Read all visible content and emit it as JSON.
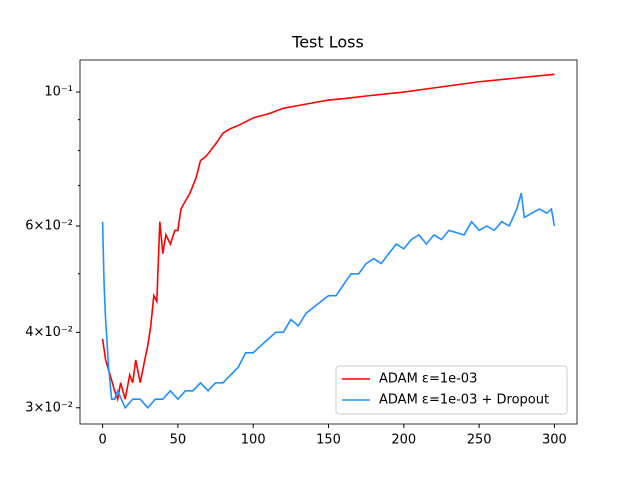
{
  "chart_data": {
    "type": "line",
    "title": "Test Loss",
    "log_y": true,
    "legend": "lower right",
    "xlim": [
      -15,
      315
    ],
    "xticks": [
      0,
      50,
      100,
      150,
      200,
      250,
      300
    ],
    "ylim": [
      0.0282,
      0.113
    ],
    "yticks": [
      {
        "value": 0.03,
        "label": "3×10⁻²"
      },
      {
        "value": 0.04,
        "label": "4×10⁻²"
      },
      {
        "value": 0.06,
        "label": "6×10⁻²"
      },
      {
        "value": 0.1,
        "label": "10⁻¹"
      }
    ],
    "yminorticks": [
      0.05,
      0.07,
      0.08,
      0.09
    ],
    "series": [
      {
        "name": "ADAM ε=1e-03",
        "color": "#ff0000",
        "x": [
          0,
          2,
          5,
          8,
          10,
          12,
          15,
          18,
          20,
          22,
          25,
          28,
          30,
          32,
          34,
          36,
          38,
          40,
          42,
          45,
          48,
          50,
          52,
          55,
          58,
          60,
          62,
          65,
          68,
          70,
          75,
          80,
          85,
          90,
          100,
          110,
          120,
          130,
          140,
          150,
          160,
          175,
          200,
          225,
          250,
          275,
          300
        ],
        "values": [
          0.039,
          0.036,
          0.034,
          0.032,
          0.031,
          0.033,
          0.031,
          0.034,
          0.033,
          0.036,
          0.033,
          0.036,
          0.038,
          0.041,
          0.046,
          0.045,
          0.061,
          0.054,
          0.058,
          0.056,
          0.059,
          0.059,
          0.064,
          0.066,
          0.068,
          0.07,
          0.072,
          0.077,
          0.078,
          0.079,
          0.082,
          0.0855,
          0.087,
          0.088,
          0.0906,
          0.092,
          0.094,
          0.095,
          0.096,
          0.097,
          0.0975,
          0.0985,
          0.1,
          0.102,
          0.104,
          0.1055,
          0.107
        ]
      },
      {
        "name": "ADAM ε=1e-03 + Dropout",
        "color": "#1e90ff",
        "x": [
          0,
          1,
          2,
          4,
          6,
          8,
          10,
          15,
          20,
          25,
          30,
          35,
          40,
          45,
          50,
          55,
          60,
          65,
          70,
          75,
          80,
          85,
          90,
          95,
          100,
          105,
          110,
          115,
          120,
          125,
          130,
          135,
          140,
          145,
          150,
          155,
          160,
          165,
          170,
          175,
          180,
          185,
          190,
          195,
          200,
          205,
          210,
          215,
          220,
          225,
          230,
          240,
          245,
          250,
          255,
          260,
          265,
          270,
          275,
          278,
          280,
          285,
          290,
          295,
          298,
          300
        ],
        "values": [
          0.061,
          0.048,
          0.042,
          0.035,
          0.031,
          0.031,
          0.032,
          0.03,
          0.031,
          0.031,
          0.03,
          0.031,
          0.031,
          0.032,
          0.031,
          0.032,
          0.032,
          0.033,
          0.032,
          0.033,
          0.033,
          0.034,
          0.035,
          0.037,
          0.037,
          0.038,
          0.039,
          0.04,
          0.04,
          0.042,
          0.041,
          0.043,
          0.044,
          0.045,
          0.046,
          0.046,
          0.048,
          0.05,
          0.05,
          0.052,
          0.053,
          0.052,
          0.054,
          0.056,
          0.055,
          0.057,
          0.058,
          0.056,
          0.058,
          0.057,
          0.059,
          0.058,
          0.061,
          0.059,
          0.06,
          0.059,
          0.061,
          0.06,
          0.064,
          0.068,
          0.062,
          0.063,
          0.064,
          0.063,
          0.064,
          0.06
        ]
      }
    ]
  }
}
